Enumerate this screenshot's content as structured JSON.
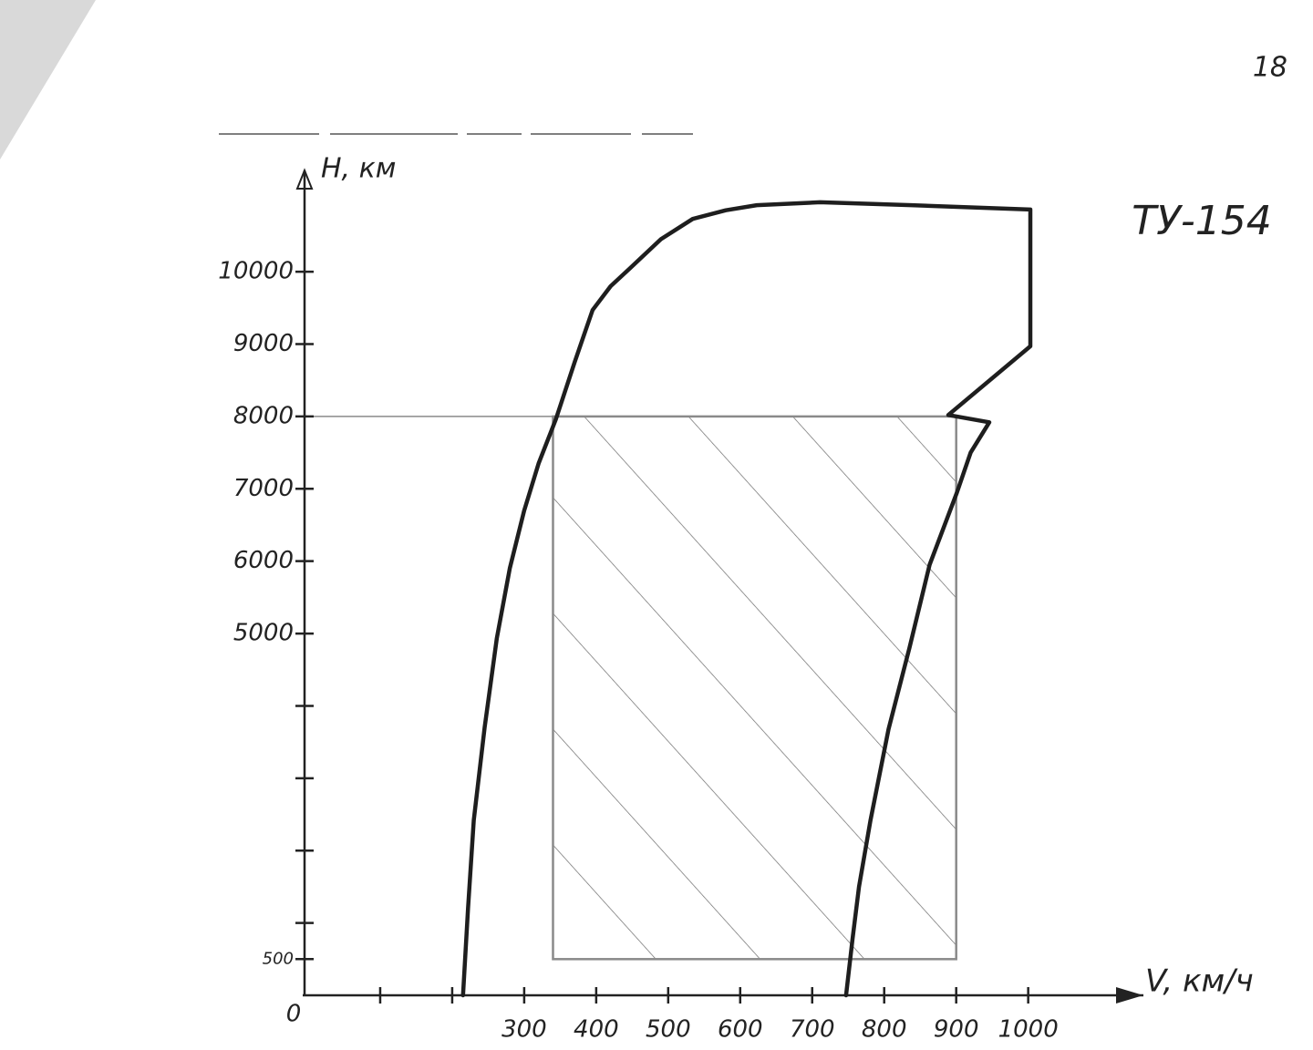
{
  "chart_data": {
    "type": "line",
    "title": "ТУ-154",
    "page_number": "18",
    "x_label": "V, км/ч",
    "y_label": "Н, км",
    "origin_label": "0",
    "xlim": [
      0,
      1160
    ],
    "ylim": [
      0,
      11400
    ],
    "xticks": [
      {
        "value": 100,
        "label": null
      },
      {
        "value": 200,
        "label": null
      },
      300,
      400,
      500,
      600,
      700,
      800,
      900,
      1000
    ],
    "yticks": [
      500,
      {
        "value": 1000,
        "label": null
      },
      {
        "value": 2000,
        "label": null
      },
      {
        "value": 3000,
        "label": null
      },
      {
        "value": 4000,
        "label": null
      },
      5000,
      6000,
      7000,
      8000,
      9000,
      10000
    ],
    "color": "#1e1e1e",
    "x": [
      215,
      222,
      230,
      245,
      262,
      280,
      300,
      320,
      344,
      370,
      395,
      420,
      446,
      490,
      534,
      580,
      623,
      711,
      838,
      1003,
      1003,
      889,
      946,
      920,
      901,
      863,
      835,
      806,
      781,
      765,
      756,
      747
    ],
    "values": [
      0,
      1200,
      2420,
      3700,
      4937,
      5900,
      6700,
      7350,
      7960,
      8750,
      9470,
      9800,
      10040,
      10450,
      10730,
      10850,
      10920,
      10960,
      10920,
      10860,
      8970,
      8020,
      7920,
      7500,
      6950,
      5950,
      4800,
      3680,
      2420,
      1500,
      780,
      0
    ],
    "region": {
      "x": [
        340,
        900
      ],
      "y": [
        500,
        8000
      ],
      "color": "#8a8a8a"
    }
  }
}
